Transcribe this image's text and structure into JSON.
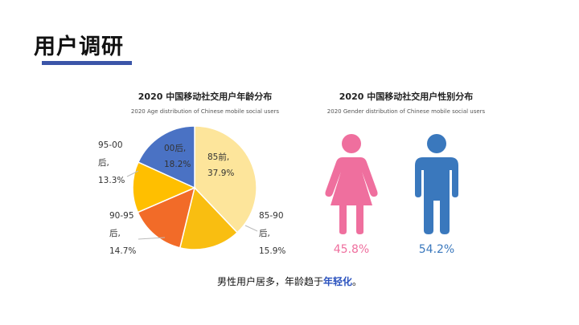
{
  "page": {
    "title": "用户调研",
    "caption_prefix": "男性用户居多，年龄趋于",
    "caption_highlight": "年轻化",
    "caption_suffix": "。"
  },
  "chart_data": [
    {
      "type": "pie",
      "title": "2020 中国移动社交用户年龄分布",
      "subtitle": "2020 Age distribution of Chinese mobile social users",
      "slices": [
        {
          "label": "85前,",
          "value": 37.9,
          "display": "37.9%",
          "color": "#fde59b"
        },
        {
          "label": "85-90\n后,",
          "value": 15.9,
          "display": "15.9%",
          "color": "#f9be11"
        },
        {
          "label": "90-95\n后,",
          "value": 14.7,
          "display": "14.7%",
          "color": "#f26b28"
        },
        {
          "label": "95-00\n后,",
          "value": 13.3,
          "display": "13.3%",
          "color": "#ffbf00"
        },
        {
          "label": "00后,",
          "value": 18.2,
          "display": "18.2%",
          "color": "#4a72c4"
        }
      ]
    },
    {
      "type": "bar",
      "title": "2020 中国移动社交用户性别分布",
      "subtitle": "2020 Gender distribution of Chinese mobile social users",
      "categories": [
        "female",
        "male"
      ],
      "values": [
        45.8,
        54.2
      ],
      "display": [
        "45.8%",
        "54.2%"
      ],
      "colors": {
        "female": "#ef6f9e",
        "male": "#3a78bd"
      }
    }
  ]
}
